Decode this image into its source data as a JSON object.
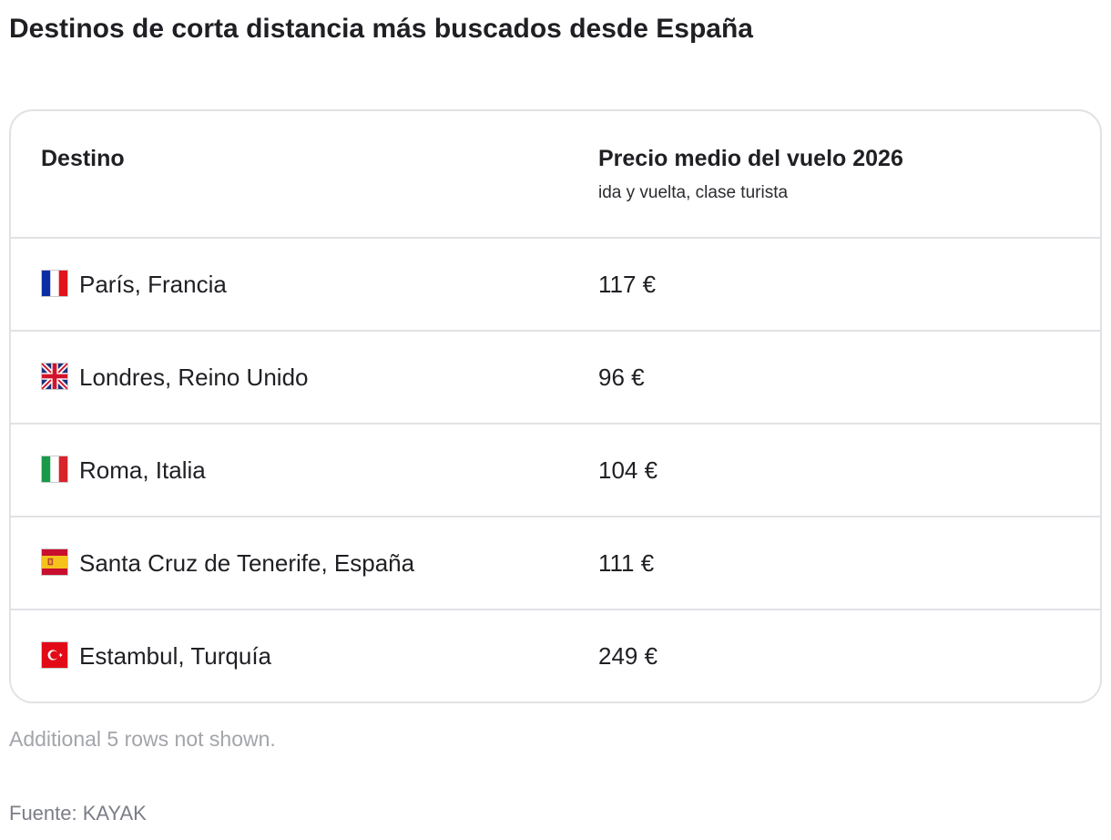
{
  "title": "Destinos de corta distancia más buscados desde España",
  "table": {
    "headers": {
      "destination": "Destino",
      "price": "Precio medio del vuelo 2026",
      "price_sub": "ida y vuelta, clase turista"
    },
    "rows": [
      {
        "flag_icon": "flag-france-icon",
        "destination": "París, Francia",
        "price": "117 €"
      },
      {
        "flag_icon": "flag-united-kingdom-icon",
        "destination": "Londres, Reino Unido",
        "price": "96 €"
      },
      {
        "flag_icon": "flag-italy-icon",
        "destination": "Roma, Italia",
        "price": "104 €"
      },
      {
        "flag_icon": "flag-spain-icon",
        "destination": "Santa Cruz de Tenerife, España",
        "price": "111 €"
      },
      {
        "flag_icon": "flag-turkey-icon",
        "destination": "Estambul, Turquía",
        "price": "249 €"
      }
    ]
  },
  "note": "Additional 5 rows not shown.",
  "source": "Fuente: KAYAK",
  "colors": {
    "border": "#e1e2e5",
    "text": "#1f1f24",
    "note": "#a3a5ab",
    "source": "#7b7e86"
  }
}
